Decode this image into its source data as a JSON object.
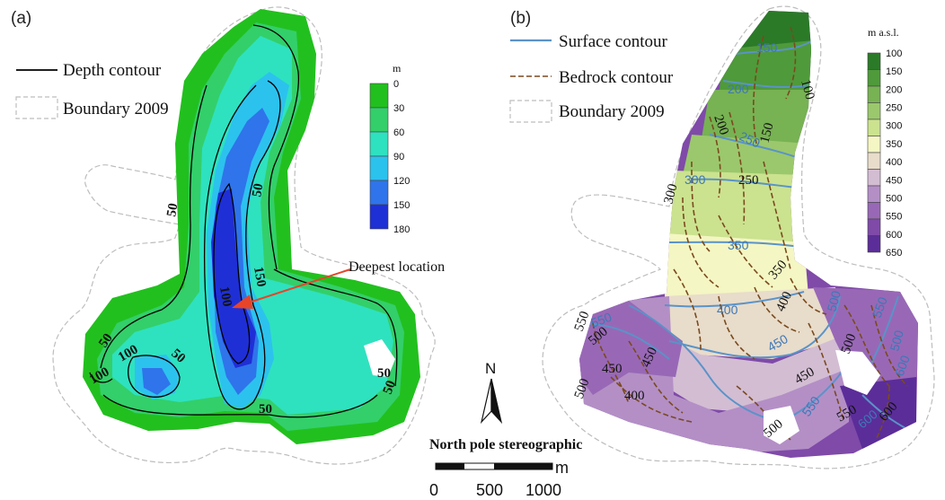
{
  "panels": {
    "a": {
      "label": "(a)"
    },
    "b": {
      "label": "(b)"
    }
  },
  "legend_a": {
    "depth_contour": "Depth contour",
    "boundary": "Boundary 2009"
  },
  "legend_b": {
    "surface_contour": "Surface contour",
    "bedrock_contour": "Bedrock contour",
    "boundary": "Boundary 2009"
  },
  "colorbar_a": {
    "unit": "m",
    "ticks": [
      "0",
      "30",
      "60",
      "90",
      "120",
      "150",
      "180"
    ],
    "colors": [
      "#22c01e",
      "#33cf6a",
      "#2ee2bf",
      "#2cc2ee",
      "#2f74ea",
      "#1f2fd6"
    ]
  },
  "colorbar_b": {
    "unit": "m a.s.l.",
    "ticks": [
      "100",
      "150",
      "200",
      "250",
      "300",
      "350",
      "400",
      "450",
      "500",
      "550",
      "600",
      "650"
    ],
    "colors": [
      "#2b7a28",
      "#4f9a3a",
      "#77b253",
      "#9bc86c",
      "#cbe28f",
      "#f4f6c3",
      "#e8dcca",
      "#d3bdd3",
      "#b38fc6",
      "#9868b6",
      "#7f4aa8",
      "#5b2d99"
    ]
  },
  "colors": {
    "surface_contour": "#5a93c8",
    "bedrock_contour": "#7a4a1e",
    "depth_contour": "#000000",
    "boundary": "#bdbdbd",
    "arrow": "#e8442a"
  },
  "annotation": {
    "deepest": "Deepest location"
  },
  "depth_labels": [
    "50",
    "50",
    "50",
    "50",
    "50",
    "50",
    "50",
    "100",
    "100",
    "100",
    "150"
  ],
  "surface_labels": [
    "150",
    "200",
    "250",
    "300",
    "350",
    "400",
    "450",
    "500",
    "550",
    "550",
    "500",
    "550",
    "600",
    "600"
  ],
  "bedrock_labels": [
    "100",
    "150",
    "200",
    "250",
    "300",
    "350",
    "400",
    "450",
    "500",
    "550",
    "500",
    "450",
    "400",
    "500",
    "550",
    "600",
    "500",
    "450"
  ],
  "map_meta": {
    "projection": "North pole stereographic",
    "north": "N",
    "scale_unit": "m",
    "scale_ticks": [
      "0",
      "500",
      "1000"
    ]
  }
}
